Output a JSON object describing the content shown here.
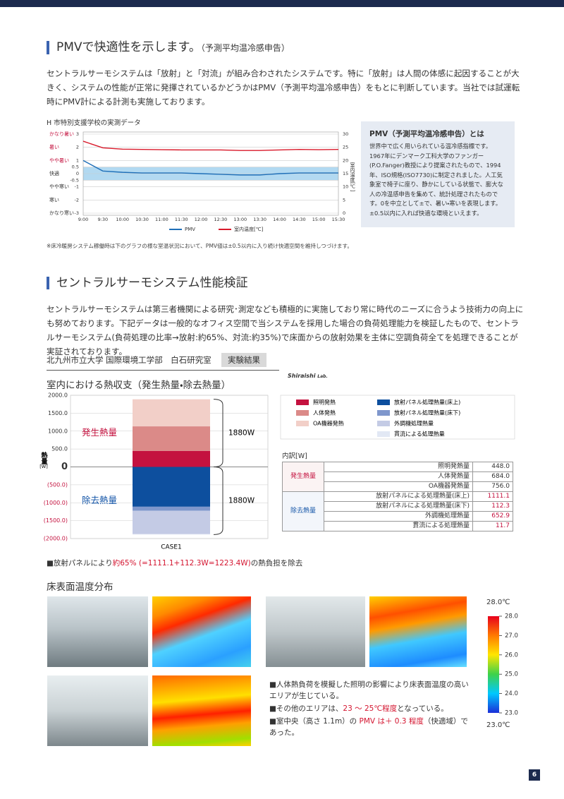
{
  "section1": {
    "heading": "PMVで快適性を示します。",
    "heading_note": "（予測平均温冷感申告）",
    "body": "セントラルサーモシステムは「放射」と「対流」が組み合わされたシステムです。特に「放射」は人間の体感に起因することが大きく、システムの性能が正常に発揮されているかどうかはPMV（予測平均温冷感申告）をもとに判断しています。当社では試運転時にPMV計による計測も実施しております。",
    "note": "※床冷暖房システム稼働時は下のグラフの様な室温状況において、PMV値は±0.5以内に入り続け快適空間を維持しつづけます。"
  },
  "sidebar": {
    "title": "PMV（予測平均温冷感申告）とは",
    "body": "世界中で広く用いられている温冷感指標です。1967年にデンマーク工科大学のファンガー(P.O.Fanger)教授により提案されたもので、1994年、ISO規格(ISO7730)に制定されました。人工気象室で椅子に座り、静かにしている状態で、膨大な人の冷温感申告を集めて、統計処理されたものです。0を中立として±で、暑い・寒いを表現します。±0.5以内に入れば快適な環境といえます。"
  },
  "section2": {
    "heading": "セントラルサーモシステム性能検証",
    "body": "セントラルサーモシステムは第三者機関による研究･測定なども積極的に実施しており常に時代のニーズに合うよう技術力の向上にも努めております。下記データは一般的なオフィス空間で当システムを採用した場合の負荷処理能力を検証したもので、セントラルサーモシステム(負荷処理の比率→放射:約65%、対流:約35%)で床面からの放射効果を主体に空調負荷全てを処理できることが実証されております。",
    "lab": "北九州市立大学 国際環境工学部　白石研究室",
    "badge": "実験結果",
    "logo": "Shiraishi",
    "logo_sub": "Lab."
  },
  "chart_data": [
    {
      "type": "line",
      "title": "H 市特別支援学校の実測データ",
      "categories": [
        "9:00",
        "9:30",
        "10:00",
        "10:30",
        "11:00",
        "11:30",
        "12:00",
        "12:30",
        "13:00",
        "13:30",
        "14:00",
        "14:30",
        "15:00",
        "15:30"
      ],
      "series": [
        {
          "name": "PMV",
          "color": "#1f6fb8",
          "values": [
            1.0,
            0.2,
            0.1,
            0.05,
            0.05,
            0.05,
            0.0,
            -0.05,
            -0.1,
            -0.1,
            0.0,
            0.05,
            0.05,
            0.05
          ]
        },
        {
          "name": "室内温度[℃]",
          "color": "#d9192a",
          "axis": "y2",
          "values": [
            27.3,
            24.8,
            24.3,
            24.2,
            24.1,
            24.0,
            24.0,
            24.0,
            23.8,
            23.8,
            24.0,
            24.2,
            24.1,
            24.2
          ]
        }
      ],
      "ylim": [
        -3,
        3
      ],
      "yticks": [
        3,
        2,
        1,
        0.5,
        0,
        -0.5,
        -1,
        -2,
        -3
      ],
      "y2lim": [
        0,
        30
      ],
      "y2ticks": [
        30,
        25,
        20,
        15,
        10,
        5,
        0
      ],
      "y2_label": "室内温度[℃]",
      "sensation_labels": [
        {
          "value": 3,
          "label": "かなり暑い"
        },
        {
          "value": 2,
          "label": "暑い"
        },
        {
          "value": 1,
          "label": "やや暑い"
        },
        {
          "value": 0,
          "label": "快適"
        },
        {
          "value": -1,
          "label": "やや寒い"
        },
        {
          "value": -2,
          "label": "寒い"
        },
        {
          "value": -3,
          "label": "かなり寒い"
        }
      ],
      "comfort_band": [
        -0.5,
        0.5
      ],
      "band_color": "#9fd0ee",
      "grid": true,
      "legend": "bottom"
    },
    {
      "type": "stacked_bar",
      "title": "室内における熱収支（発生熱量・除去熱量）",
      "categories": [
        "CASE1"
      ],
      "series": [
        {
          "name": "照明発熱",
          "color": "#c4123f",
          "values": [
            448.0
          ]
        },
        {
          "name": "人体発熱",
          "color": "#db8a88",
          "values": [
            684.0
          ]
        },
        {
          "name": "OA機器発熱",
          "color": "#f2cfc8",
          "values": [
            756.0
          ]
        },
        {
          "name": "放射パネル処理熱量(床上)",
          "color": "#0d4f9e",
          "values": [
            -1111.1
          ]
        },
        {
          "name": "放射パネル処理熱量(床下)",
          "color": "#7f97cc",
          "values": [
            -112.3
          ]
        },
        {
          "name": "外調機処理熱量",
          "color": "#c4cbe5",
          "values": [
            -652.9
          ]
        },
        {
          "name": "貫流による処理熱量",
          "color": "#e2e8f4",
          "values": [
            -11.7
          ]
        }
      ],
      "ylim": [
        -2000,
        2000
      ],
      "yticks": [
        {
          "value": 2000,
          "label": "2000.0"
        },
        {
          "value": 1500,
          "label": "1500.0"
        },
        {
          "value": 1000,
          "label": "1000.0"
        },
        {
          "value": 500,
          "label": "500.0"
        },
        0,
        {
          "value": -500,
          "label": "(500.0)"
        },
        {
          "value": -1000,
          "label": "(1000.0)"
        },
        {
          "value": -1500,
          "label": "(1500.0)"
        },
        {
          "value": -2000,
          "label": "(2000.0)"
        }
      ],
      "y_label": "熱量",
      "y_unit": "[W]",
      "positive_label": "発生熱量",
      "negative_label": "除去熱量",
      "positive_total": "1880W",
      "negative_total": "1880W",
      "grid": true
    }
  ],
  "breakdown": {
    "title": "内訳[W]",
    "groups": [
      {
        "name": "発生熱量",
        "rows": [
          [
            "照明発熱量",
            "448.0"
          ],
          [
            "人体発熱量",
            "684.0"
          ],
          [
            "OA機器発熱量",
            "756.0"
          ]
        ]
      },
      {
        "name": "除去熱量",
        "rows": [
          [
            "放射パネルによる処理熱量(床上)",
            "1111.1"
          ],
          [
            "放射パネルによる処理熱量(床下)",
            "112.3"
          ],
          [
            "外調機処理熱量",
            "652.9"
          ],
          [
            "貫流による処理熱量",
            "11.7"
          ]
        ]
      }
    ]
  },
  "summary": {
    "parts": [
      {
        "text": "■放射パネルにより"
      },
      {
        "text": "約65% (=1111.1+112.3W=1223.4W)",
        "emphasis": true
      },
      {
        "text": "の熱負担を除去"
      }
    ]
  },
  "section3": {
    "heading": "床表面温度分布",
    "bullets": [
      {
        "parts": [
          {
            "text": "■人体熱負荷を模擬した照明の影響により床表面温度の高いエリアが生じている。"
          }
        ]
      },
      {
        "parts": [
          {
            "text": "■その他のエリアは、"
          },
          {
            "text": "23 ～ 25℃程度",
            "emphasis": true
          },
          {
            "text": "となっている。"
          }
        ]
      },
      {
        "parts": [
          {
            "text": "■室中央（高さ 1.1m）の "
          },
          {
            "text": "PMV は＋ 0.3 程度",
            "emphasis": true
          },
          {
            "text": "（快適域）であった。"
          }
        ]
      }
    ]
  },
  "color_scale": {
    "top_label": "28.0℃",
    "bottom_label": "23.0℃",
    "lim": [
      23,
      28
    ],
    "ticks": [
      {
        "value": 28,
        "label": "28.0"
      },
      {
        "value": 27,
        "label": "27.0"
      },
      {
        "value": 26,
        "label": "26.0"
      },
      {
        "value": 25,
        "label": "25.0"
      },
      {
        "value": 24,
        "label": "24.0"
      },
      {
        "value": 23,
        "label": "23.0"
      }
    ]
  },
  "page_number": "6"
}
